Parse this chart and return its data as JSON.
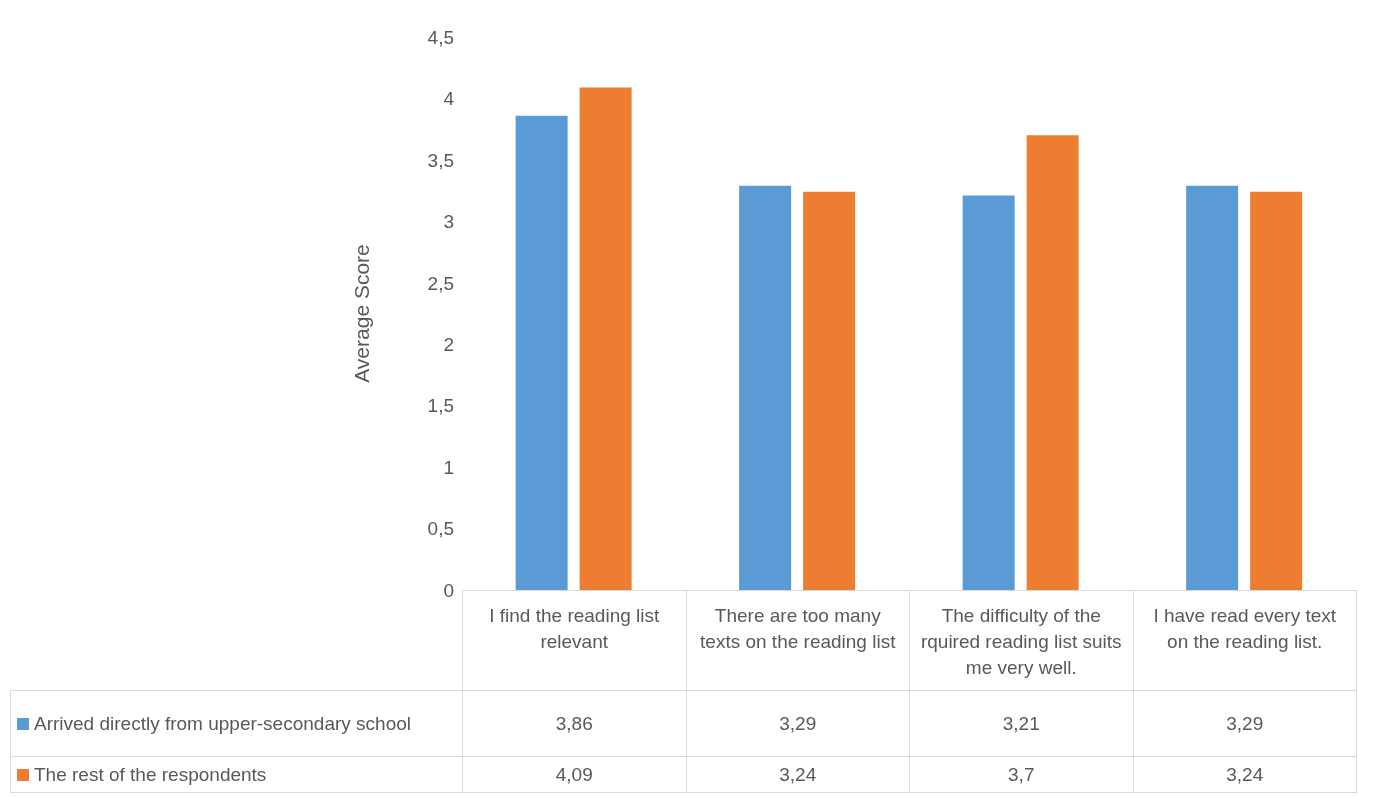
{
  "chart_data": {
    "type": "bar",
    "ylabel": "Average Score",
    "categories": [
      "I find the reading list relevant",
      "There are too many texts on the reading list",
      "The difficulty of the rquired reading list suits me very well.",
      "I have read every text on the reading list."
    ],
    "series": [
      {
        "name": "Arrived directly from upper-secondary school",
        "color": "#5b9bd5",
        "values": [
          3.86,
          3.29,
          3.21,
          3.29
        ],
        "value_labels": [
          "3,86",
          "3,29",
          "3,21",
          "3,29"
        ]
      },
      {
        "name": "The rest of the respondents",
        "color": "#ed7d31",
        "values": [
          4.09,
          3.24,
          3.7,
          3.24
        ],
        "value_labels": [
          "4,09",
          "3,24",
          "3,7",
          "3,24"
        ]
      }
    ],
    "ylim": [
      0,
      4.5
    ],
    "yticks": [
      0,
      {
        "value": 0.5,
        "label": "0,5"
      },
      1,
      {
        "value": 1.5,
        "label": "1,5"
      },
      2,
      {
        "value": 2.5,
        "label": "2,5"
      },
      3,
      {
        "value": 3.5,
        "label": "3,5"
      },
      4,
      {
        "value": 4.5,
        "label": "4,5"
      }
    ],
    "grid": false,
    "legend": "bottom"
  }
}
